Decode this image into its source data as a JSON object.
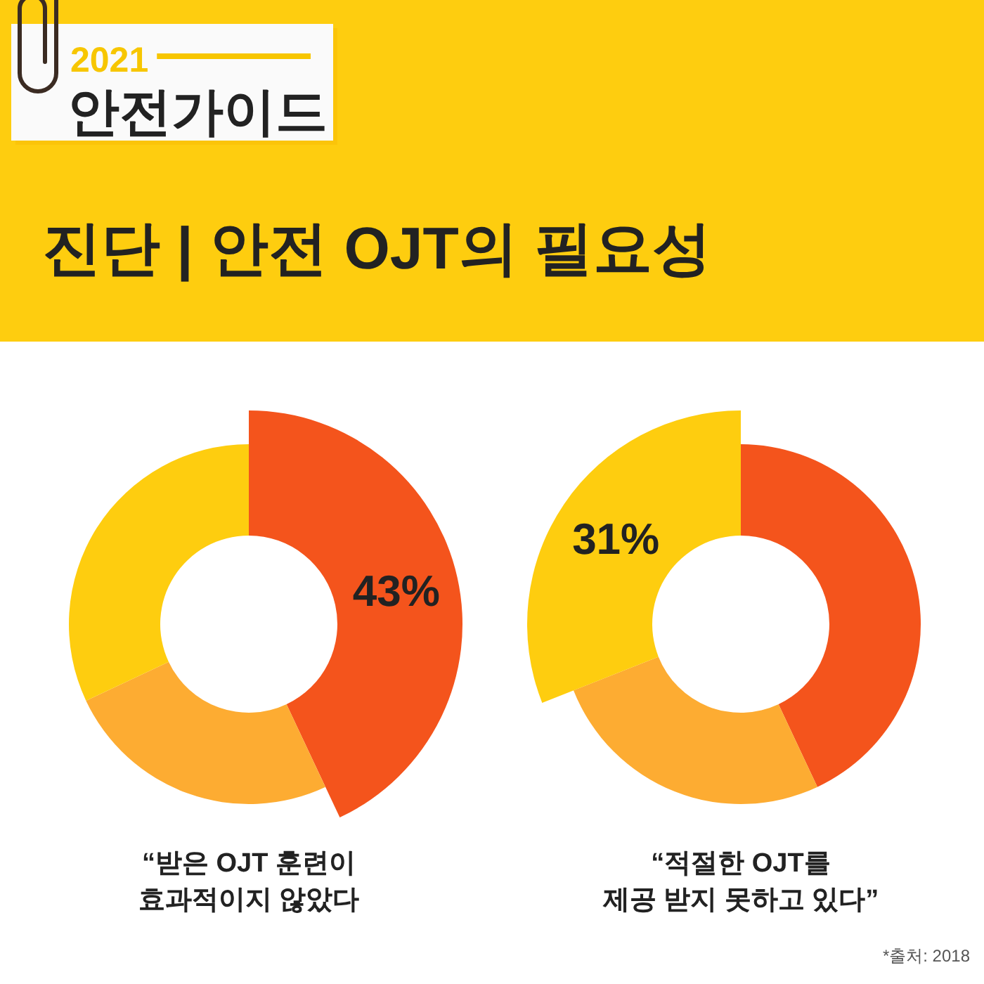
{
  "chart_data": [
    {
      "type": "donut",
      "title": "“받은 OJT 훈련이\n효과적이지 않았다",
      "categories": [
        null,
        null,
        null
      ],
      "values": [
        43,
        25,
        32
      ],
      "colors": [
        "#f4541c",
        "#fdac32",
        "#fecd0f"
      ],
      "value_labels": [
        "43%",
        null,
        null
      ],
      "annotations": [
        "2021",
        "안전가이드",
        "진단 | 안전 OJT의 필요성"
      ]
    },
    {
      "type": "donut",
      "title": "“적절한 OJT를\n제공 받지 못하고 있다”",
      "categories": [
        null,
        null,
        null
      ],
      "values": [
        43,
        26,
        31
      ],
      "colors": [
        "#f4541c",
        "#fdac32",
        "#fecd0f"
      ],
      "value_labels": [
        null,
        null,
        "31%"
      ],
      "annotations": [
        "*출처: 2018"
      ]
    }
  ]
}
